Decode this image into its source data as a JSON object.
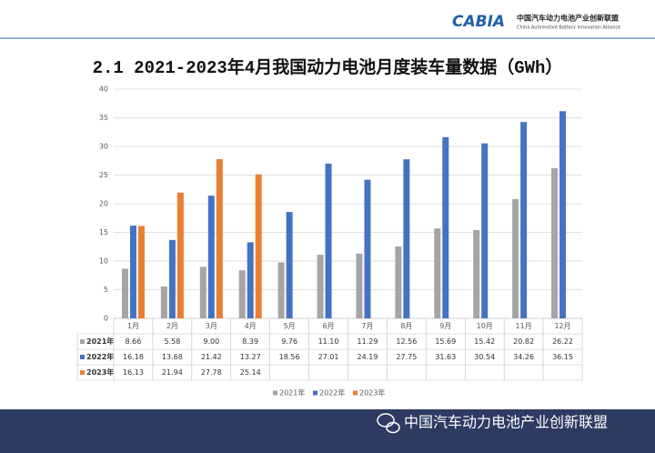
{
  "header": {
    "logo": "CABIA",
    "org_cn": "中国汽车动力电池产业创新联盟",
    "org_en": "China Automotive Battery Innovation Alliance"
  },
  "footer": {
    "text": "中国汽车动力电池产业创新联盟"
  },
  "chart_data": {
    "type": "bar",
    "title": "2.1 2021-2023年4月我国动力电池月度装车量数据（GWh）",
    "categories": [
      "1月",
      "2月",
      "3月",
      "4月",
      "5月",
      "6月",
      "7月",
      "8月",
      "9月",
      "10月",
      "11月",
      "12月"
    ],
    "series": [
      {
        "name": "2021年",
        "color": "#a5a5a5",
        "values": [
          8.66,
          5.58,
          9.0,
          8.39,
          9.76,
          11.1,
          11.29,
          12.56,
          15.69,
          15.42,
          20.82,
          26.22
        ],
        "value_labels": [
          "8.66",
          "5.58",
          "9.00",
          "8.39",
          "9.76",
          "11.10",
          "11.29",
          "12.56",
          "15.69",
          "15.42",
          "20.82",
          "26.22"
        ]
      },
      {
        "name": "2022年",
        "color": "#4472c4",
        "values": [
          16.18,
          13.68,
          21.42,
          13.27,
          18.56,
          27.01,
          24.19,
          27.75,
          31.63,
          30.54,
          34.26,
          36.15
        ],
        "value_labels": [
          "16.18",
          "13.68",
          "21.42",
          "13.27",
          "18.56",
          "27.01",
          "24.19",
          "27.75",
          "31.63",
          "30.54",
          "34.26",
          "36.15"
        ]
      },
      {
        "name": "2023年",
        "color": "#ed7d31",
        "values": [
          16.13,
          21.94,
          27.78,
          25.14,
          null,
          null,
          null,
          null,
          null,
          null,
          null,
          null
        ],
        "value_labels": [
          "16.13",
          "21.94",
          "27.78",
          "25.14",
          null,
          null,
          null,
          null,
          null,
          null,
          null,
          null
        ]
      }
    ],
    "ylim": [
      0,
      40
    ],
    "yticks": [
      0,
      5,
      10,
      15,
      20,
      25,
      30,
      35,
      40
    ],
    "grid": true,
    "legend": "bottom"
  }
}
